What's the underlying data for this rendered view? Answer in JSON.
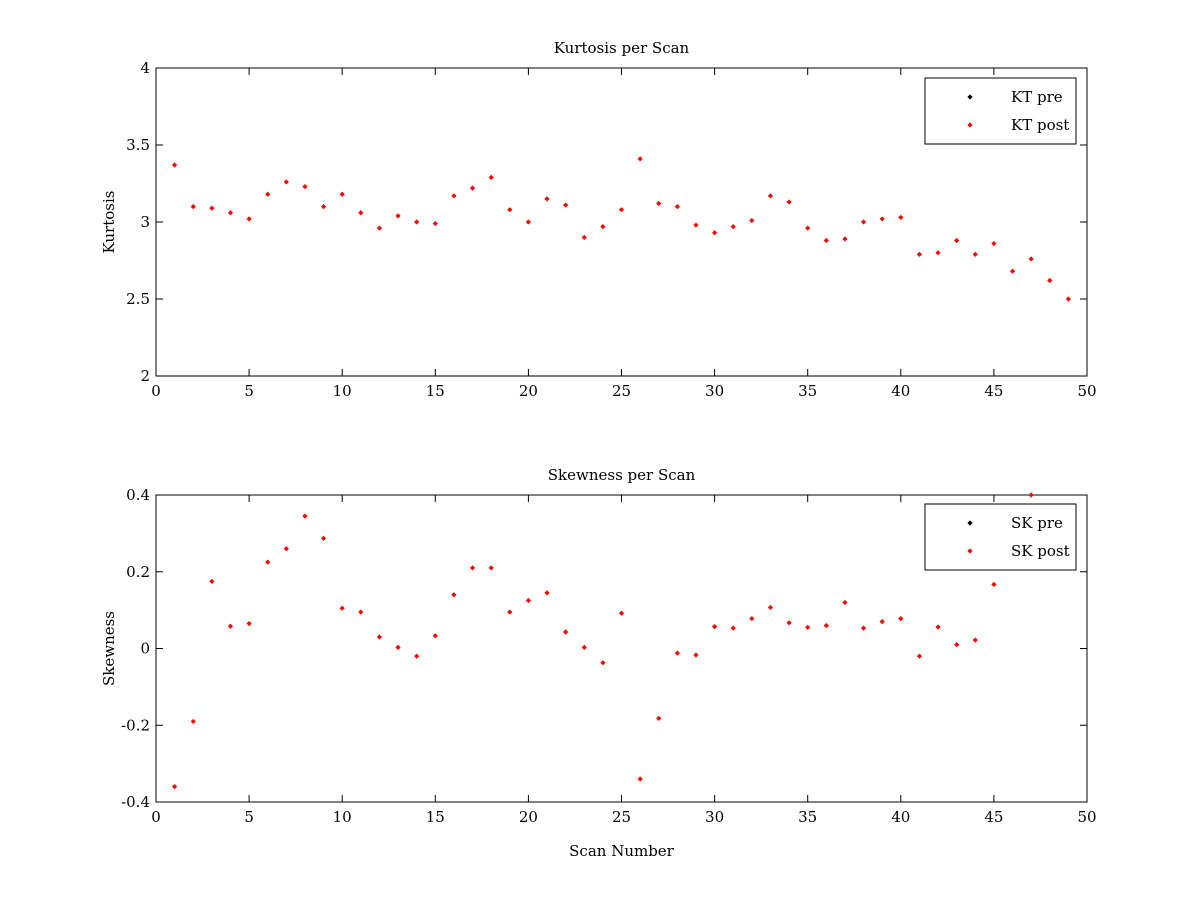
{
  "chart_data": [
    {
      "type": "scatter",
      "title": "Kurtosis per Scan",
      "xlabel": "",
      "ylabel": "Kurtosis",
      "xlim": [
        0,
        50
      ],
      "ylim": [
        2,
        4
      ],
      "xticks": [
        0,
        5,
        10,
        15,
        20,
        25,
        30,
        35,
        40,
        45,
        50
      ],
      "yticks": [
        2,
        2.5,
        3,
        3.5,
        4
      ],
      "grid": false,
      "legend_position": "top-right",
      "series": [
        {
          "name": "KT pre",
          "color": "#000000",
          "x": [],
          "y": []
        },
        {
          "name": "KT post",
          "color": "#ff0000",
          "x": [
            1,
            2,
            3,
            4,
            5,
            6,
            7,
            8,
            9,
            10,
            11,
            12,
            13,
            14,
            15,
            16,
            17,
            18,
            19,
            20,
            21,
            22,
            23,
            24,
            25,
            26,
            27,
            28,
            29,
            30,
            31,
            32,
            33,
            34,
            35,
            36,
            37,
            38,
            39,
            40,
            41,
            42,
            43,
            44,
            45,
            46,
            47,
            48,
            49
          ],
          "y": [
            3.37,
            3.1,
            3.09,
            3.06,
            3.02,
            3.18,
            3.26,
            3.23,
            3.1,
            3.18,
            3.06,
            2.96,
            3.04,
            3.0,
            2.99,
            3.17,
            3.22,
            3.29,
            3.08,
            3.0,
            3.15,
            3.11,
            2.9,
            2.97,
            3.08,
            3.41,
            3.12,
            3.1,
            2.98,
            2.93,
            2.97,
            3.01,
            3.17,
            3.13,
            2.96,
            2.88,
            2.89,
            3.0,
            3.02,
            3.03,
            2.79,
            2.8,
            2.88,
            2.79,
            2.86,
            2.68,
            2.76,
            2.62,
            2.5
          ]
        }
      ]
    },
    {
      "type": "scatter",
      "title": "Skewness per Scan",
      "xlabel": "Scan Number",
      "ylabel": "Skewness",
      "xlim": [
        0,
        50
      ],
      "ylim": [
        -0.4,
        0.4
      ],
      "xticks": [
        0,
        5,
        10,
        15,
        20,
        25,
        30,
        35,
        40,
        45,
        50
      ],
      "yticks": [
        -0.4,
        -0.2,
        0,
        0.2,
        0.4
      ],
      "grid": false,
      "legend_position": "top-right",
      "series": [
        {
          "name": "SK pre",
          "color": "#000000",
          "x": [],
          "y": []
        },
        {
          "name": "SK post",
          "color": "#ff0000",
          "x": [
            1,
            2,
            3,
            4,
            5,
            6,
            7,
            8,
            9,
            10,
            11,
            12,
            13,
            14,
            15,
            16,
            17,
            18,
            19,
            20,
            21,
            22,
            23,
            24,
            25,
            26,
            27,
            28,
            29,
            30,
            31,
            32,
            33,
            34,
            35,
            36,
            37,
            38,
            39,
            40,
            41,
            42,
            43,
            44,
            45,
            47
          ],
          "y": [
            -0.36,
            -0.19,
            0.175,
            0.058,
            0.065,
            0.225,
            0.26,
            0.345,
            0.287,
            0.105,
            0.095,
            0.03,
            0.003,
            -0.02,
            0.033,
            0.14,
            0.21,
            0.21,
            0.095,
            0.125,
            0.145,
            0.043,
            0.003,
            -0.037,
            0.092,
            -0.34,
            -0.182,
            -0.012,
            -0.017,
            0.057,
            0.053,
            0.078,
            0.107,
            0.067,
            0.055,
            0.06,
            0.12,
            0.053,
            0.07,
            0.078,
            -0.02,
            0.056,
            0.01,
            0.022,
            0.167,
            0.4
          ]
        }
      ]
    }
  ]
}
